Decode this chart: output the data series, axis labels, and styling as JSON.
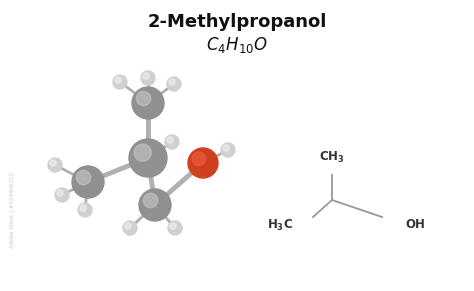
{
  "title_line1": "2-Methylpropanol",
  "title_line2": "$C_4H_{10}O$",
  "bg_color": "#ffffff",
  "title_fontsize": 13,
  "formula_fontsize": 12,
  "bond_color": "#b0b0b0",
  "atom_gray_dark": "#909090",
  "atom_gray_light": "#c8c8c8",
  "atom_white_dark": "#d0d0d0",
  "atom_white_light": "#f0f0f0",
  "atom_red_dark": "#d04020",
  "atom_red_light": "#f06040",
  "struct_bond_color": "#999999",
  "struct_text_color": "#333333",
  "watermark_color": "#bbbbbb",
  "watermark_text": "Adobe Stock | #554406313"
}
